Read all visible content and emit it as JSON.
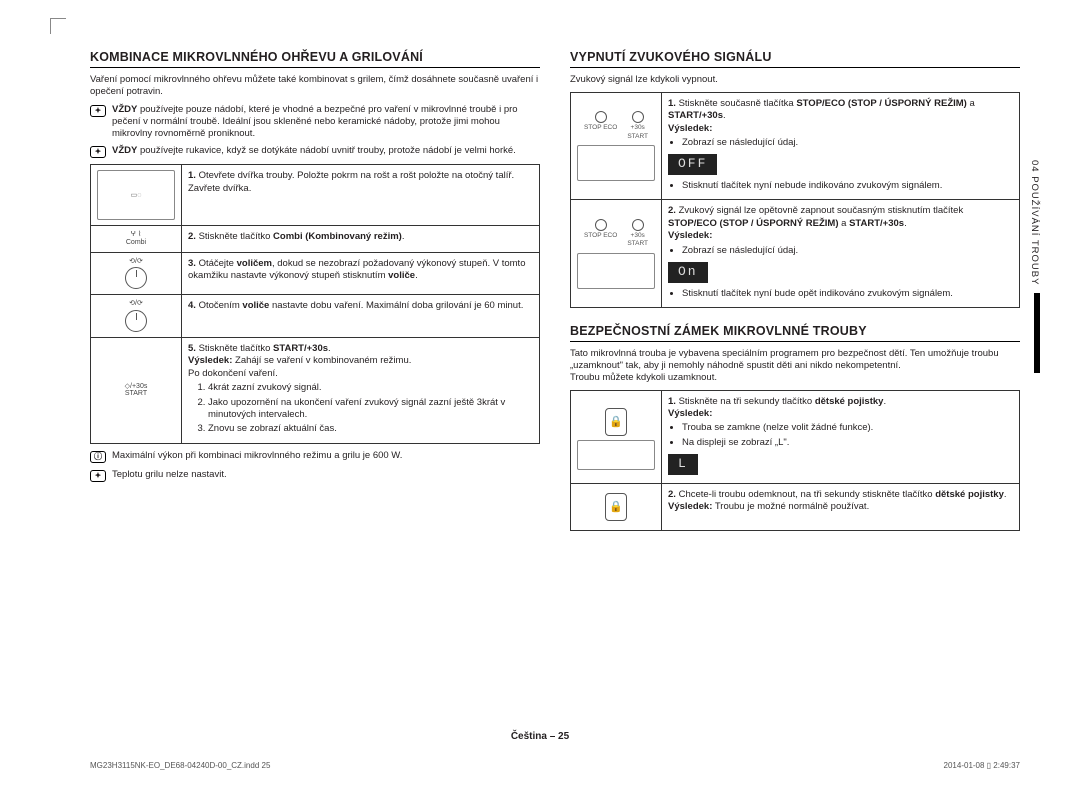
{
  "left": {
    "heading": "KOMBINACE MIKROVLNNÉHO OHŘEVU A GRILOVÁNÍ",
    "intro": "Vaření pomocí mikrovlnného ohřevu můžete také kombinovat s grilem, čímž dosáhnete současně uvaření i opečení potravin.",
    "notes": [
      "VŽDY používejte pouze nádobí, které je vhodné a bezpečné pro vaření v mikrovlnné troubě i pro pečení v normální troubě. Ideální jsou skleněné nebo keramické nádoby, protože jimi mohou mikrovlny rovnoměrně proniknout.",
      "VŽDY používejte rukavice, když se dotýkáte nádobí uvnitř trouby, protože nádobí je velmi horké."
    ],
    "steps": [
      {
        "diagram": "oven",
        "num": "1.",
        "body": "Otevřete dvířka trouby.\nPoložte pokrm na rošt a rošt položte na otočný talíř. Zavřete dvířka."
      },
      {
        "diagram": "combi",
        "num": "2.",
        "body_html": "Stiskněte tlačítko <span class='b'>Combi (Kombinovaný režim)</span>."
      },
      {
        "diagram": "dial",
        "num": "3.",
        "body_html": "Otáčejte <span class='b'>voličem</span>, dokud se nezobrazí požadovaný výkonový stupeň. V tomto okamžiku nastavte výkonový stupeň stisknutím <span class='b'>voliče</span>."
      },
      {
        "diagram": "dial",
        "num": "4.",
        "body_html": "Otočením <span class='b'>voliče</span> nastavte dobu vaření.\nMaximální doba grilování je 60 minut."
      },
      {
        "diagram": "start",
        "num": "5.",
        "body_html": "Stiskněte tlačítko <span class='b'>START/+30s</span>.<br><span class='b'>Výsledek:</span> Zahájí se vaření v kombinovaném režimu.<br>Po dokončení vaření.",
        "sublist": [
          "4krát zazní zvukový signál.",
          "Jako upozornění na ukončení vaření zvukový signál zazní ještě 3krát v minutových intervalech.",
          "Znovu se zobrazí aktuální čas."
        ]
      }
    ],
    "foot_notes": [
      "Maximální výkon při kombinaci mikrovlnného režimu a grilu je 600 W.",
      "Teplotu grilu nelze nastavit."
    ]
  },
  "right": {
    "sec1": {
      "heading": "VYPNUTÍ ZVUKOVÉHO SIGNÁLU",
      "intro": "Zvukový signál lze kdykoli vypnout.",
      "rows": [
        {
          "num": "1.",
          "lead_html": "Stiskněte současně tlačítka <span class='b'>STOP/ECO (STOP / ÚSPORNÝ REŽIM)</span> a <span class='b'>START/+30s</span>.<br><span class='b'>Výsledek:</span>",
          "bullets_pre": [
            "Zobrazí se následující údaj."
          ],
          "lcd": "OFF",
          "bullets_post": [
            "Stisknutí tlačítek nyní nebude indikováno zvukovým signálem."
          ]
        },
        {
          "num": "2.",
          "lead_html": "Zvukový signál lze opětovně zapnout současným stisknutím tlačítek <span class='b'>STOP/ECO (STOP / ÚSPORNÝ REŽIM)</span> a <span class='b'>START/+30s</span>.<br><span class='b'>Výsledek:</span>",
          "bullets_pre": [
            "Zobrazí se následující údaj."
          ],
          "lcd": "On",
          "bullets_post": [
            "Stisknutí tlačítek nyní bude opět indikováno zvukovým signálem."
          ]
        }
      ]
    },
    "sec2": {
      "heading": "BEZPEČNOSTNÍ ZÁMEK MIKROVLNNÉ TROUBY",
      "intro": "Tato mikrovlnná trouba je vybavena speciálním programem pro bezpečnost dětí. Ten umožňuje troubu „uzamknout\" tak, aby ji nemohly náhodně spustit děti ani nikdo nekompetentní.\nTroubu můžete kdykoli uzamknout.",
      "rows": [
        {
          "num": "1.",
          "lead_html": "Stiskněte na tři sekundy tlačítko <span class='b'>dětské pojistky</span>.<br><span class='b'>Výsledek:</span>",
          "bullets": [
            "Trouba se zamkne (nelze volit žádné funkce).",
            "Na displeji se zobrazí „L\"."
          ],
          "lcd": "L"
        },
        {
          "num": "2.",
          "lead_html": "Chcete-li troubu odemknout, na tři sekundy stiskněte tlačítko <span class='b'>dětské pojistky</span>.<br><span class='b'>Výsledek:</span> Troubu je možné normálně používat."
        }
      ]
    }
  },
  "side_tab": "04  POUŽÍVÁNÍ TROUBY",
  "footer_center": "Čeština – 25",
  "footer_left": "MG23H3115NK-EO_DE68-04240D-00_CZ.indd   25",
  "footer_right": "2014-01-08   ▯ 2:49:37"
}
